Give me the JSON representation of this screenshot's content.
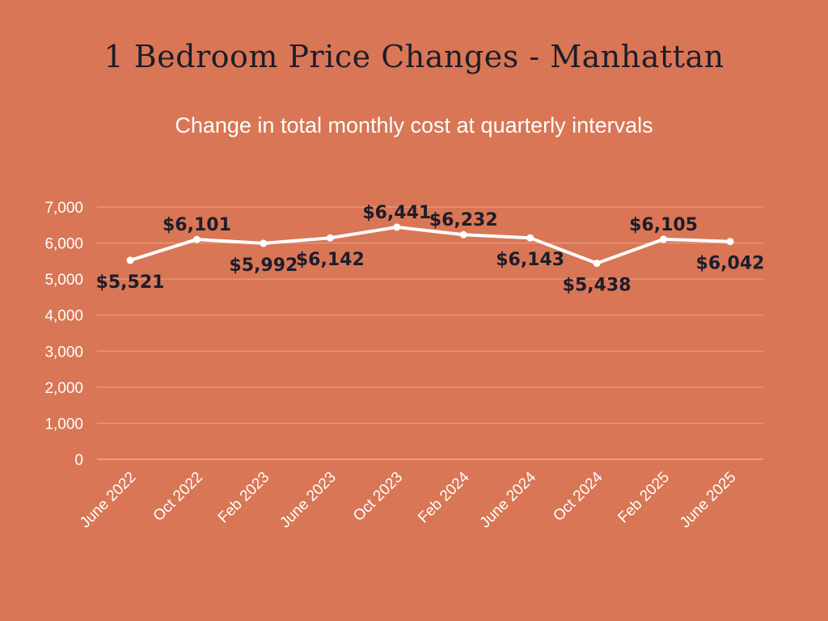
{
  "chart_data": {
    "type": "line",
    "title": "1 Bedroom Price Changes - Manhattan",
    "subtitle": "Change in total monthly cost at quarterly intervals",
    "categories": [
      "June 2022",
      "Oct 2022",
      "Feb 2023",
      "June 2023",
      "Oct 2023",
      "Feb 2024",
      "June 2024",
      "Oct 2024",
      "Feb 2025",
      "June 2025"
    ],
    "series": [
      {
        "values": [
          5521,
          6101,
          5992,
          6142,
          6441,
          6232,
          6143,
          5438,
          6105,
          6042
        ]
      }
    ],
    "data_labels": [
      "$5,521",
      "$6,101",
      "$5,992",
      "$6,142",
      "$6,441",
      "$6,232",
      "$6,143",
      "$5,438",
      "$6,105",
      "$6,042"
    ],
    "label_positions": [
      "below",
      "above",
      "below",
      "below",
      "above",
      "above",
      "below",
      "below",
      "above",
      "below"
    ],
    "yticks": [
      0,
      1000,
      2000,
      3000,
      4000,
      5000,
      6000,
      7000
    ],
    "ytick_labels": [
      "0",
      "1,000",
      "2,000",
      "3,000",
      "4,000",
      "5,000",
      "6,000",
      "7,000"
    ],
    "ylim": [
      0,
      7000
    ],
    "grid": true,
    "colors": {
      "background": "#d97655",
      "line": "#ffffff",
      "grid": "#e9a58c",
      "label": "#1c1d2b"
    }
  }
}
